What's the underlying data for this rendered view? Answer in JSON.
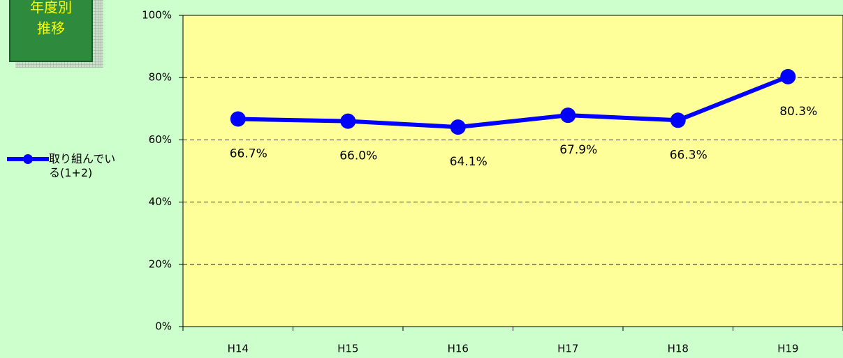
{
  "chart_data": {
    "type": "line",
    "annotations": [
      "年度別",
      "推移"
    ],
    "categories": [
      "H14",
      "H15",
      "H16",
      "H17",
      "H18",
      "H19"
    ],
    "series": [
      {
        "name": "取り組んでいる(1+2)",
        "color": "#0000ff",
        "values": [
          66.7,
          66.0,
          64.1,
          67.9,
          66.3,
          80.3
        ],
        "value_labels": [
          "66.7%",
          "66.0%",
          "64.1%",
          "67.9%",
          "66.3%",
          "80.3%"
        ]
      }
    ],
    "ylim": [
      0,
      100
    ],
    "yticks": [
      {
        "value": 0,
        "label": "0%"
      },
      {
        "value": 20,
        "label": "20%"
      },
      {
        "value": 40,
        "label": "40%"
      },
      {
        "value": 60,
        "label": "60%"
      },
      {
        "value": 80,
        "label": "80%"
      },
      {
        "value": 100,
        "label": "100%"
      }
    ],
    "grid": true,
    "legend": "left",
    "plot_color": "#ffff99"
  }
}
